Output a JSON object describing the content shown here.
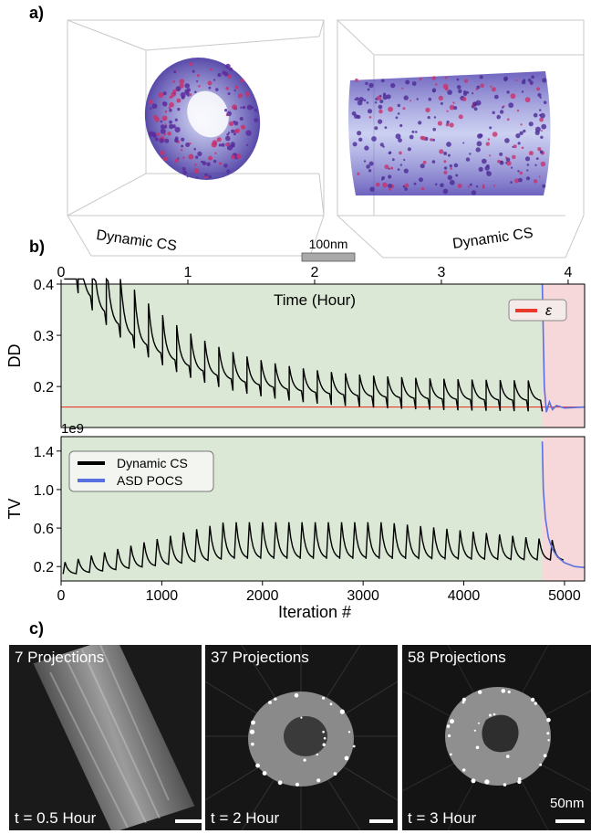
{
  "panels": {
    "a": {
      "label": "a)",
      "left_caption": "Dynamic CS",
      "right_caption": "Dynamic CS",
      "scalebar_label": "100nm"
    },
    "b": {
      "label": "b)"
    },
    "c": {
      "label": "c)",
      "images": [
        {
          "title": "7 Projections",
          "time": "t = 0.5 Hour"
        },
        {
          "title": "37 Projections",
          "time": "t = 2 Hour"
        },
        {
          "title": "58 Projections",
          "time": "t = 3 Hour"
        }
      ],
      "scalebar_label": "50nm"
    }
  },
  "chart_data": [
    {
      "type": "line",
      "ylabel": "DD",
      "top_xlabel": "Time (Hour)",
      "top_xticks": [
        0,
        1,
        2,
        3,
        4
      ],
      "top_xlim": [
        0,
        4.13
      ],
      "xlim": [
        0,
        5200
      ],
      "ylim": [
        0.12,
        0.4
      ],
      "yticks": [
        0.2,
        0.3,
        0.4
      ],
      "ytick_labels": [
        "0.2",
        "0.3",
        "0.4"
      ],
      "legend": [
        {
          "name": "ε",
          "color": "#e8392b"
        }
      ],
      "legend_position": "top-right",
      "threshold": 0.16,
      "regions": [
        {
          "from": 0,
          "to": 4780,
          "color": "#dbe8d5"
        },
        {
          "from": 4780,
          "to": 5200,
          "color": "#f6d8da"
        }
      ],
      "series": [
        {
          "name": "Dynamic CS",
          "color": "#000000"
        },
        {
          "name": "ASD POCS",
          "color": "#5a6fe0"
        }
      ]
    },
    {
      "type": "line",
      "ylabel": "TV",
      "scale_label": "1e9",
      "xlabel": "Iteration #",
      "xticks": [
        0,
        1000,
        2000,
        3000,
        4000,
        5000
      ],
      "xlim": [
        0,
        5200
      ],
      "ylim": [
        0.05,
        1.55
      ],
      "yticks": [
        0.2,
        0.6,
        1.0,
        1.4
      ],
      "ytick_labels": [
        "0.2",
        "0.6",
        "1.0",
        "1.4"
      ],
      "legend": [
        {
          "name": "Dynamic CS",
          "color": "#000000"
        },
        {
          "name": "ASD POCS",
          "color": "#5a6fe0"
        }
      ],
      "legend_position": "top-left",
      "regions": [
        {
          "from": 0,
          "to": 4780,
          "color": "#dbe8d5"
        },
        {
          "from": 4780,
          "to": 5200,
          "color": "#f6d8da"
        }
      ],
      "series": [
        {
          "name": "Dynamic CS",
          "color": "#000000"
        },
        {
          "name": "ASD POCS",
          "color": "#5a6fe0"
        }
      ]
    }
  ]
}
